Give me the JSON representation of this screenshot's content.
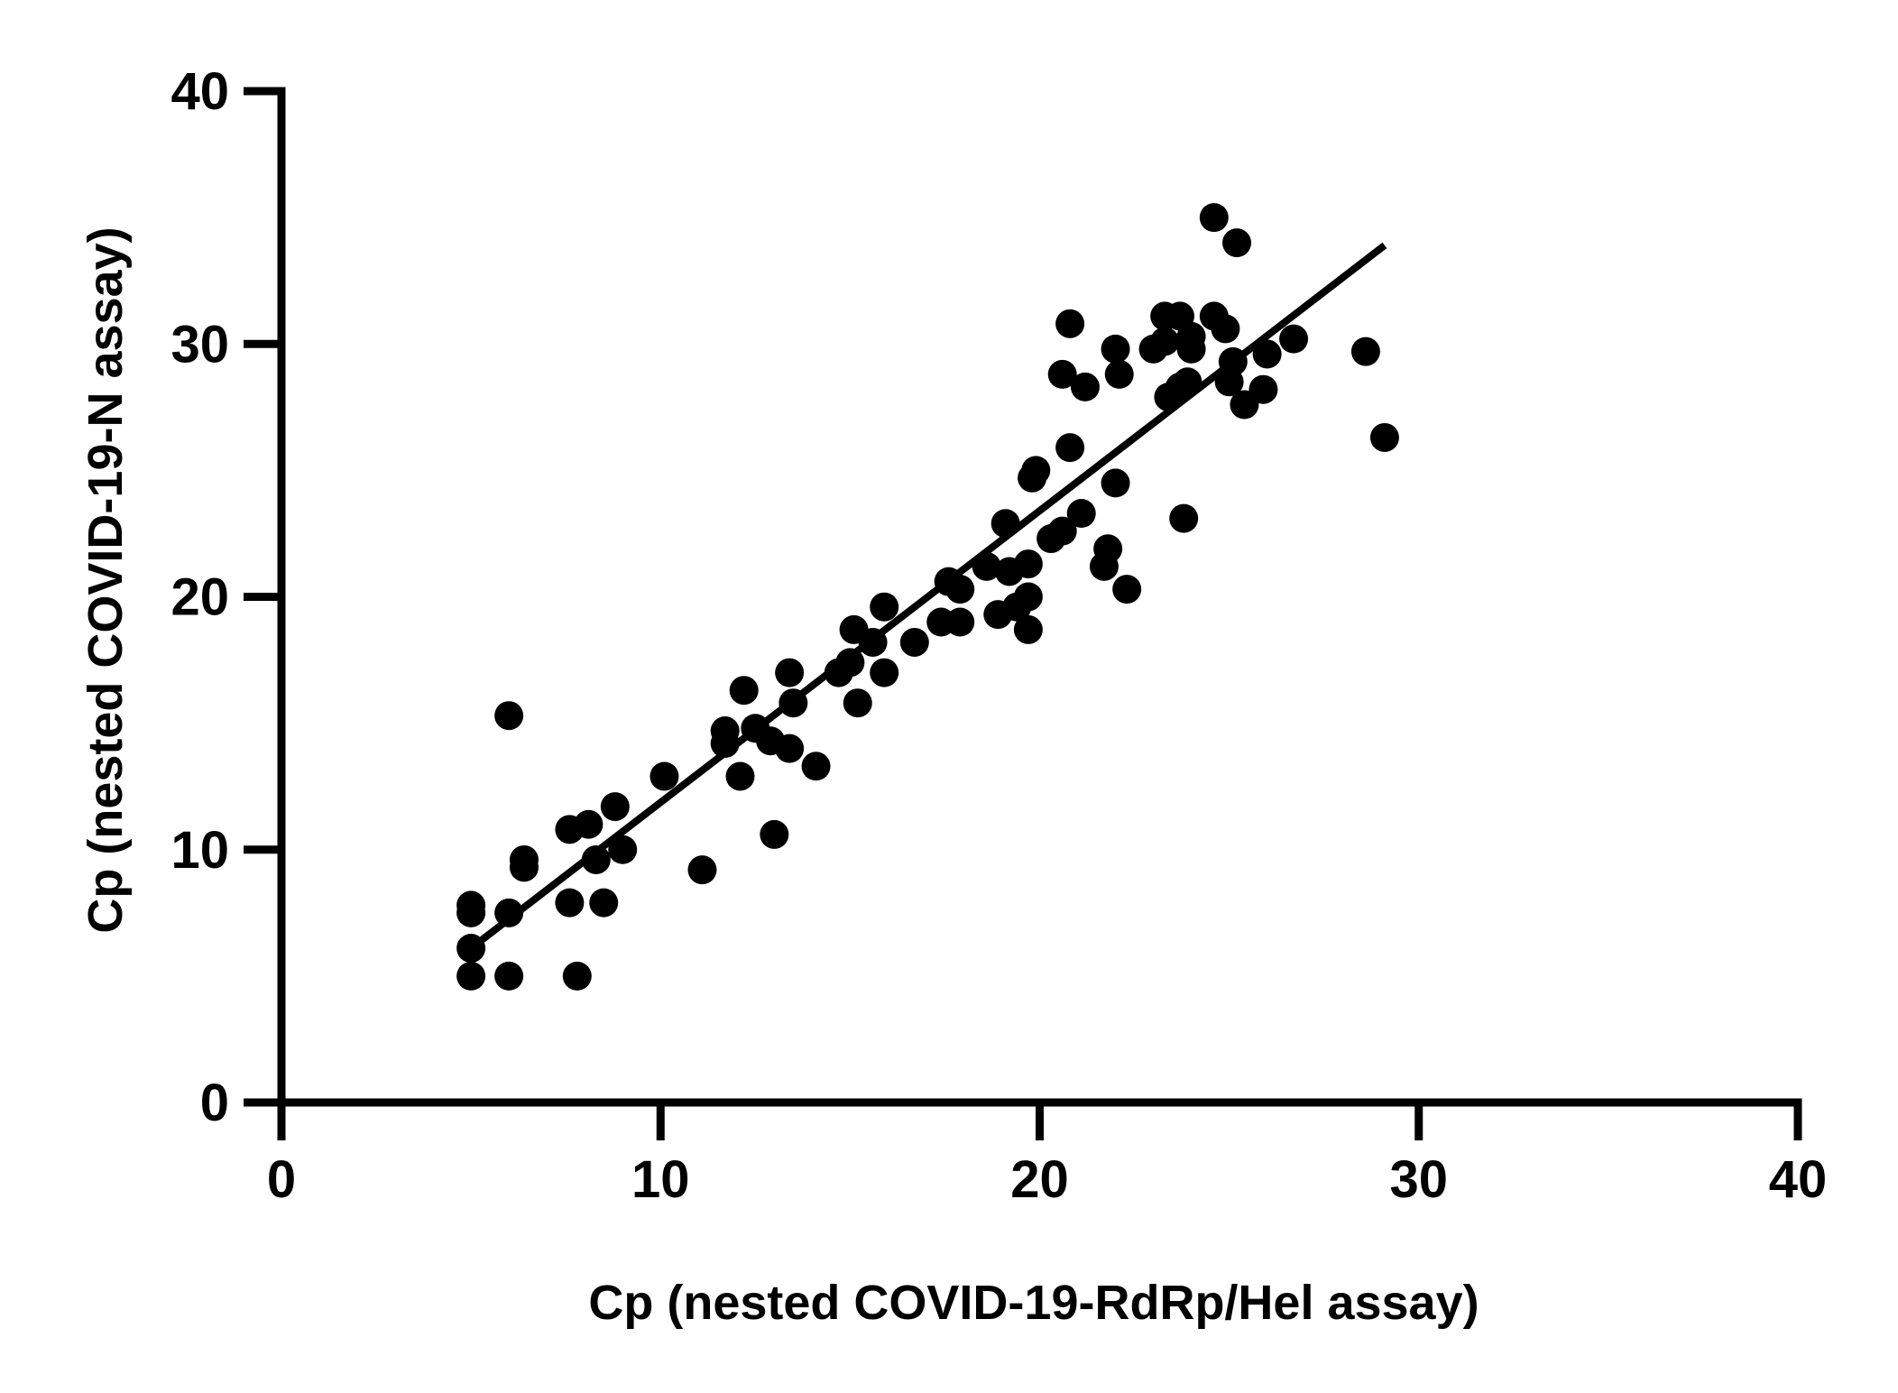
{
  "chart_data": {
    "type": "scatter",
    "title": "",
    "xlabel": "Cp (nested COVID-19-RdRp/Hel assay)",
    "ylabel": "Cp (nested COVID-19-N assay)",
    "xlim": [
      0,
      40
    ],
    "ylim": [
      0,
      40
    ],
    "xticks": [
      "0",
      "10",
      "20",
      "30",
      "40"
    ],
    "yticks": [
      "0",
      "10",
      "20",
      "30",
      "40"
    ],
    "grid": false,
    "legend": "none",
    "colors": {
      "points": "#000000",
      "line": "#000000",
      "axes": "#000000"
    },
    "series": [
      {
        "points": [
          [
            5.0,
            5.0
          ],
          [
            5.0,
            6.1
          ],
          [
            5.0,
            7.5
          ],
          [
            5.0,
            7.8
          ],
          [
            6.0,
            5.0
          ],
          [
            6.0,
            7.5
          ],
          [
            6.0,
            15.3
          ],
          [
            6.4,
            9.3
          ],
          [
            6.4,
            9.6
          ],
          [
            7.6,
            7.9
          ],
          [
            7.6,
            10.8
          ],
          [
            7.8,
            5.0
          ],
          [
            8.1,
            11.0
          ],
          [
            8.3,
            9.6
          ],
          [
            8.5,
            7.9
          ],
          [
            8.8,
            11.7
          ],
          [
            9.0,
            10.0
          ],
          [
            10.1,
            12.9
          ],
          [
            11.1,
            9.2
          ],
          [
            11.7,
            14.2
          ],
          [
            11.7,
            14.7
          ],
          [
            12.1,
            12.9
          ],
          [
            12.2,
            16.3
          ],
          [
            12.5,
            14.8
          ],
          [
            12.9,
            14.3
          ],
          [
            13.0,
            10.6
          ],
          [
            13.4,
            14.0
          ],
          [
            13.4,
            17.0
          ],
          [
            13.5,
            15.8
          ],
          [
            14.1,
            13.3
          ],
          [
            14.7,
            17.0
          ],
          [
            15.0,
            17.4
          ],
          [
            15.1,
            18.7
          ],
          [
            15.2,
            15.8
          ],
          [
            15.6,
            18.2
          ],
          [
            15.9,
            17.0
          ],
          [
            15.9,
            19.6
          ],
          [
            16.7,
            18.2
          ],
          [
            17.4,
            19.0
          ],
          [
            17.6,
            20.6
          ],
          [
            17.9,
            19.0
          ],
          [
            17.9,
            20.3
          ],
          [
            18.6,
            21.2
          ],
          [
            18.9,
            19.3
          ],
          [
            19.1,
            22.9
          ],
          [
            19.2,
            21.0
          ],
          [
            19.4,
            19.6
          ],
          [
            19.7,
            18.7
          ],
          [
            19.7,
            20.0
          ],
          [
            19.7,
            21.3
          ],
          [
            19.8,
            24.7
          ],
          [
            19.9,
            25.0
          ],
          [
            20.3,
            22.3
          ],
          [
            20.6,
            22.6
          ],
          [
            20.6,
            28.8
          ],
          [
            20.8,
            25.9
          ],
          [
            20.8,
            30.8
          ],
          [
            21.1,
            23.3
          ],
          [
            21.2,
            28.3
          ],
          [
            21.7,
            21.2
          ],
          [
            21.8,
            21.9
          ],
          [
            22.0,
            24.5
          ],
          [
            22.0,
            29.8
          ],
          [
            22.1,
            28.8
          ],
          [
            22.3,
            20.3
          ],
          [
            23.0,
            29.8
          ],
          [
            23.3,
            30.1
          ],
          [
            23.3,
            31.1
          ],
          [
            23.4,
            27.9
          ],
          [
            23.7,
            28.3
          ],
          [
            23.7,
            31.1
          ],
          [
            23.8,
            23.1
          ],
          [
            23.9,
            28.5
          ],
          [
            24.0,
            29.8
          ],
          [
            24.0,
            30.3
          ],
          [
            24.6,
            35.0
          ],
          [
            24.6,
            31.1
          ],
          [
            24.9,
            30.6
          ],
          [
            25.0,
            28.5
          ],
          [
            25.1,
            29.3
          ],
          [
            25.2,
            34.0
          ],
          [
            25.4,
            27.6
          ],
          [
            25.9,
            28.2
          ],
          [
            26.0,
            29.6
          ],
          [
            26.7,
            30.2
          ],
          [
            28.6,
            29.7
          ],
          [
            29.1,
            26.3
          ]
        ]
      }
    ],
    "fit_line": {
      "x": [
        5.0,
        29.1
      ],
      "y": [
        6.1,
        33.9
      ]
    }
  }
}
